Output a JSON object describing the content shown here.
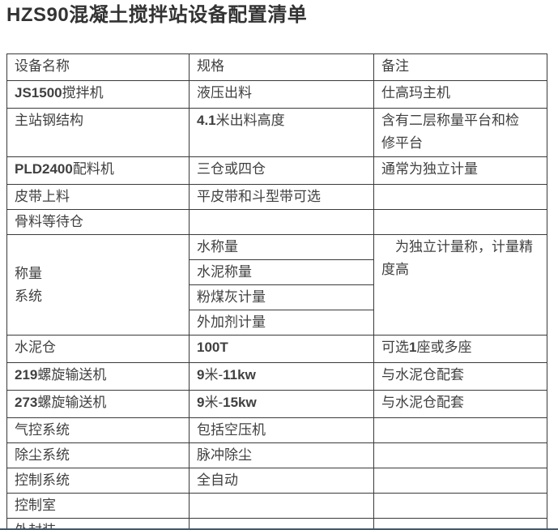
{
  "page": {
    "title": "HZS90混凝土搅拌站设备配置清单"
  },
  "table": {
    "headers": [
      "设备名称",
      "规格",
      "备注"
    ],
    "rows": [
      [
        "JS1500搅拌机",
        "液压出料",
        "仕高玛主机"
      ],
      [
        "主站钢结构",
        "4.1米出料高度",
        "含有二层称量平台和检\n修平台"
      ],
      [
        "PLD2400配料机",
        "三仓或四仓",
        "通常为独立计量"
      ],
      [
        "皮带上料",
        "平皮带和斗型带可选",
        ""
      ],
      [
        "骨料等待仓",
        "",
        ""
      ],
      [
        "水泥仓",
        "100T",
        "可选1座或多座"
      ],
      [
        "219螺旋输送机",
        "9米-11kw",
        "与水泥仓配套"
      ],
      [
        "273螺旋输送机",
        "9米-15kw",
        "与水泥仓配套"
      ],
      [
        "气控系统",
        "包括空压机",
        ""
      ],
      [
        "除尘系统",
        "脉冲除尘",
        ""
      ],
      [
        "控制系统",
        "全自动",
        ""
      ],
      [
        "控制室",
        "",
        ""
      ],
      [
        "外封装",
        "",
        ""
      ]
    ],
    "weigh_group": {
      "name": "称量\n系统",
      "specs": [
        "水称量",
        "水泥称量",
        "粉煤灰计量",
        "外加剂计量"
      ],
      "remark": "　为独立计量称，计量精\n度高"
    }
  },
  "colors": {
    "border": "#3a3a3a",
    "text": "#404040",
    "bottom_bar_dark": "#46586a",
    "bottom_bar_light": "#d2e1ee"
  }
}
